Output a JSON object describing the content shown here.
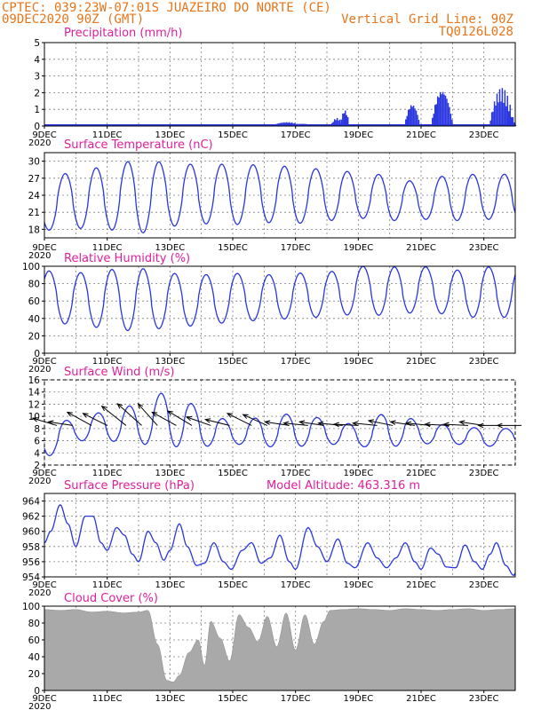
{
  "header": {
    "left_line1": "CPTEC:  039:23W-07:01S  JUAZEIRO DO NORTE (CE)",
    "left_line2": "09DEC2020 90Z (GMT)",
    "right_line2": "Vertical Grid Line: 90Z",
    "right_line3": "TQ0126L028"
  },
  "x_ticks": [
    "9DEC",
    "11DEC",
    "13DEC",
    "15DEC",
    "17DEC",
    "19DEC",
    "21DEC",
    "23DEC"
  ],
  "year_label": "2020",
  "colors": {
    "header": "#e8751a",
    "title": "#e0209a",
    "series": "#2a36e0",
    "cloud": "#a9a9a9"
  },
  "chart_data": [
    {
      "id": "precipitation",
      "type": "bar",
      "title": "Precipitation (mm/h)",
      "unit": "mm/h",
      "ylim": [
        0,
        5
      ],
      "yticks": [
        0,
        1,
        2,
        3,
        4,
        5
      ],
      "x_range_days": [
        9,
        24
      ],
      "bursts": [
        {
          "day": 14.05,
          "peak": 0.1,
          "width": 0.25
        },
        {
          "day": 16.7,
          "peak": 0.25,
          "width": 0.5
        },
        {
          "day": 17.2,
          "peak": 0.15,
          "width": 0.4
        },
        {
          "day": 18.3,
          "peak": 0.5,
          "width": 0.2
        },
        {
          "day": 18.55,
          "peak": 1.0,
          "width": 0.15
        },
        {
          "day": 20.7,
          "peak": 1.4,
          "width": 0.25
        },
        {
          "day": 21.65,
          "peak": 2.3,
          "width": 0.35
        },
        {
          "day": 23.55,
          "peak": 2.3,
          "width": 0.4
        },
        {
          "day": 23.85,
          "peak": 0.6,
          "width": 0.15
        },
        {
          "day": 24.3,
          "peak": 1.3,
          "width": 0.25
        }
      ]
    },
    {
      "id": "temperature",
      "type": "line",
      "title": "Surface Temperature (nC)",
      "unit": "C",
      "ylim": [
        16.5,
        31.5
      ],
      "yticks": [
        18,
        21,
        24,
        27,
        30
      ],
      "x_range_days": [
        9,
        24
      ],
      "daily": [
        {
          "max": 26.5,
          "min": 17.8
        },
        {
          "max": 28.5,
          "min": 18.2
        },
        {
          "max": 29.0,
          "min": 18.0
        },
        {
          "max": 30.4,
          "min": 17.2
        },
        {
          "max": 29.6,
          "min": 18.5
        },
        {
          "max": 29.4,
          "min": 19.0
        },
        {
          "max": 29.5,
          "min": 18.8
        },
        {
          "max": 29.3,
          "min": 19.2
        },
        {
          "max": 29.0,
          "min": 19.0
        },
        {
          "max": 28.5,
          "min": 19.5
        },
        {
          "max": 28.0,
          "min": 20.0
        },
        {
          "max": 27.5,
          "min": 19.5
        },
        {
          "max": 26.0,
          "min": 19.8
        },
        {
          "max": 28.0,
          "min": 19.5
        },
        {
          "max": 27.5,
          "min": 19.8
        },
        {
          "max": 27.8,
          "min": 19.5
        }
      ]
    },
    {
      "id": "humidity",
      "type": "line",
      "title": "Relative Humidity (%)",
      "unit": "%",
      "ylim": [
        0,
        100
      ],
      "yticks": [
        0,
        20,
        40,
        60,
        80,
        100
      ],
      "x_range_days": [
        9,
        24
      ],
      "daily": [
        {
          "max": 95,
          "min": 35
        },
        {
          "max": 92,
          "min": 33
        },
        {
          "max": 96,
          "min": 28
        },
        {
          "max": 98,
          "min": 25
        },
        {
          "max": 92,
          "min": 30
        },
        {
          "max": 90,
          "min": 32
        },
        {
          "max": 92,
          "min": 36
        },
        {
          "max": 90,
          "min": 38
        },
        {
          "max": 92,
          "min": 40
        },
        {
          "max": 93,
          "min": 42
        },
        {
          "max": 100,
          "min": 45
        },
        {
          "max": 99,
          "min": 43
        },
        {
          "max": 100,
          "min": 48
        },
        {
          "max": 95,
          "min": 44
        },
        {
          "max": 99,
          "min": 40
        },
        {
          "max": 100,
          "min": 42
        }
      ]
    },
    {
      "id": "wind",
      "type": "line",
      "title": "Surface Wind (m/s)",
      "unit": "m/s",
      "ylim": [
        2,
        16
      ],
      "yticks": [
        2,
        4,
        6,
        8,
        10,
        12,
        14,
        16
      ],
      "x_range_days": [
        9,
        24
      ],
      "daily": [
        {
          "max": 9.0,
          "min": 3.0
        },
        {
          "max": 9.5,
          "min": 6.0
        },
        {
          "max": 11.0,
          "min": 6.0
        },
        {
          "max": 12.0,
          "min": 5.5
        },
        {
          "max": 14.5,
          "min": 5.0
        },
        {
          "max": 11.0,
          "min": 5.0
        },
        {
          "max": 9.0,
          "min": 5.5
        },
        {
          "max": 10.0,
          "min": 5.0
        },
        {
          "max": 10.5,
          "min": 5.0
        },
        {
          "max": 9.5,
          "min": 5.5
        },
        {
          "max": 8.5,
          "min": 5.0
        },
        {
          "max": 11.0,
          "min": 5.0
        },
        {
          "max": 9.0,
          "min": 5.5
        },
        {
          "max": 8.5,
          "min": 5.5
        },
        {
          "max": 8.0,
          "min": 5.0
        },
        {
          "max": 8.0,
          "min": 5.5
        }
      ],
      "arrows": [
        {
          "day": 9.4,
          "ux": -1,
          "uy": 0.3
        },
        {
          "day": 9.9,
          "ux": -1,
          "uy": 0.15
        },
        {
          "day": 10.5,
          "ux": -1,
          "uy": 0.55
        },
        {
          "day": 11.0,
          "ux": -1,
          "uy": 0.5
        },
        {
          "day": 11.6,
          "ux": -1,
          "uy": 0.8
        },
        {
          "day": 12.1,
          "ux": -1,
          "uy": 0.9
        },
        {
          "day": 12.6,
          "ux": -0.8,
          "uy": 0.9
        },
        {
          "day": 13.2,
          "ux": -1,
          "uy": 0.55
        },
        {
          "day": 13.7,
          "ux": -1,
          "uy": 0.6
        },
        {
          "day": 14.3,
          "ux": -1,
          "uy": 0.35
        },
        {
          "day": 14.9,
          "ux": -1,
          "uy": 0.25
        },
        {
          "day": 15.6,
          "ux": -1,
          "uy": 0.5
        },
        {
          "day": 16.1,
          "ux": -1,
          "uy": 0.45
        },
        {
          "day": 16.8,
          "ux": -1,
          "uy": 0.15
        },
        {
          "day": 17.4,
          "ux": -1,
          "uy": 0.1
        },
        {
          "day": 17.9,
          "ux": -1,
          "uy": 0.15
        },
        {
          "day": 18.5,
          "ux": -1,
          "uy": 0.1
        },
        {
          "day": 19.0,
          "ux": -1,
          "uy": 0.05
        },
        {
          "day": 19.6,
          "ux": -1,
          "uy": 0.1
        },
        {
          "day": 20.1,
          "ux": -1,
          "uy": 0.2
        },
        {
          "day": 20.8,
          "ux": -1,
          "uy": 0.15
        },
        {
          "day": 21.3,
          "ux": -1,
          "uy": 0.1
        },
        {
          "day": 21.9,
          "ux": -1,
          "uy": 0.05
        },
        {
          "day": 22.5,
          "ux": -1,
          "uy": 0.05
        },
        {
          "day": 23.0,
          "ux": -1,
          "uy": 0.15
        },
        {
          "day": 23.6,
          "ux": -1,
          "uy": 0.0
        },
        {
          "day": 24.2,
          "ux": -1,
          "uy": 0.0
        }
      ]
    },
    {
      "id": "pressure",
      "type": "line",
      "title": "Surface Pressure (hPa)",
      "annotation": "Model Altitude: 463.316 m",
      "unit": "hPa",
      "ylim": [
        954,
        965
      ],
      "yticks": [
        954,
        956,
        958,
        960,
        962,
        964
      ],
      "x_range_days": [
        9,
        24
      ],
      "keypoints": [
        [
          9.0,
          958.5
        ],
        [
          9.2,
          960.0
        ],
        [
          9.5,
          963.5
        ],
        [
          9.75,
          961.0
        ],
        [
          10.0,
          958.0
        ],
        [
          10.3,
          962.0
        ],
        [
          10.55,
          962.0
        ],
        [
          10.8,
          958.5
        ],
        [
          11.0,
          957.5
        ],
        [
          11.3,
          960.5
        ],
        [
          11.55,
          959.5
        ],
        [
          11.8,
          957.0
        ],
        [
          12.0,
          956.0
        ],
        [
          12.3,
          960.0
        ],
        [
          12.55,
          958.5
        ],
        [
          12.8,
          956.2
        ],
        [
          13.0,
          957.5
        ],
        [
          13.3,
          961.0
        ],
        [
          13.55,
          958.0
        ],
        [
          13.85,
          955.5
        ],
        [
          14.1,
          955.8
        ],
        [
          14.4,
          958.5
        ],
        [
          14.7,
          956.0
        ],
        [
          14.95,
          955.0
        ],
        [
          15.3,
          957.5
        ],
        [
          15.6,
          958.5
        ],
        [
          15.9,
          955.8
        ],
        [
          16.2,
          956.5
        ],
        [
          16.5,
          959.5
        ],
        [
          16.8,
          956.0
        ],
        [
          17.0,
          955.0
        ],
        [
          17.4,
          960.5
        ],
        [
          17.7,
          958.0
        ],
        [
          18.0,
          956.0
        ],
        [
          18.35,
          959.0
        ],
        [
          18.65,
          955.8
        ],
        [
          18.9,
          955.2
        ],
        [
          19.3,
          958.5
        ],
        [
          19.6,
          956.5
        ],
        [
          19.9,
          955.2
        ],
        [
          20.2,
          956.5
        ],
        [
          20.5,
          958.5
        ],
        [
          20.8,
          956.0
        ],
        [
          21.0,
          955.0
        ],
        [
          21.3,
          957.8
        ],
        [
          21.55,
          957.0
        ],
        [
          21.8,
          955.3
        ],
        [
          22.1,
          955.2
        ],
        [
          22.4,
          958.2
        ],
        [
          22.7,
          956.0
        ],
        [
          22.95,
          955.0
        ],
        [
          23.2,
          957.0
        ],
        [
          23.4,
          958.5
        ],
        [
          23.7,
          955.5
        ],
        [
          23.95,
          954.2
        ],
        [
          24.1,
          956.0
        ],
        [
          24.3,
          958.0
        ]
      ]
    },
    {
      "id": "cloud_cover",
      "type": "area",
      "title": "Cloud Cover (%)",
      "unit": "%",
      "ylim": [
        0,
        100
      ],
      "yticks": [
        0,
        20,
        40,
        60,
        80,
        100
      ],
      "x_range_days": [
        9,
        24
      ],
      "keypoints": [
        [
          9.0,
          96
        ],
        [
          9.5,
          95
        ],
        [
          10.0,
          96
        ],
        [
          10.5,
          93
        ],
        [
          11.0,
          94
        ],
        [
          11.5,
          92
        ],
        [
          12.0,
          93
        ],
        [
          12.3,
          95
        ],
        [
          12.6,
          55
        ],
        [
          12.9,
          12
        ],
        [
          13.1,
          10
        ],
        [
          13.3,
          18
        ],
        [
          13.6,
          45
        ],
        [
          13.9,
          60
        ],
        [
          14.1,
          30
        ],
        [
          14.3,
          82
        ],
        [
          14.6,
          62
        ],
        [
          14.9,
          35
        ],
        [
          15.2,
          90
        ],
        [
          15.5,
          75
        ],
        [
          15.8,
          58
        ],
        [
          16.1,
          88
        ],
        [
          16.4,
          52
        ],
        [
          16.7,
          92
        ],
        [
          17.0,
          48
        ],
        [
          17.3,
          90
        ],
        [
          17.6,
          55
        ],
        [
          17.9,
          82
        ],
        [
          18.1,
          95
        ],
        [
          18.5,
          96
        ],
        [
          19.0,
          97
        ],
        [
          19.5,
          96
        ],
        [
          20.0,
          95
        ],
        [
          20.5,
          97
        ],
        [
          21.0,
          96
        ],
        [
          21.5,
          95
        ],
        [
          22.0,
          96
        ],
        [
          22.5,
          97
        ],
        [
          23.0,
          95
        ],
        [
          23.5,
          96
        ],
        [
          24.0,
          97
        ],
        [
          24.3,
          96
        ]
      ]
    }
  ]
}
